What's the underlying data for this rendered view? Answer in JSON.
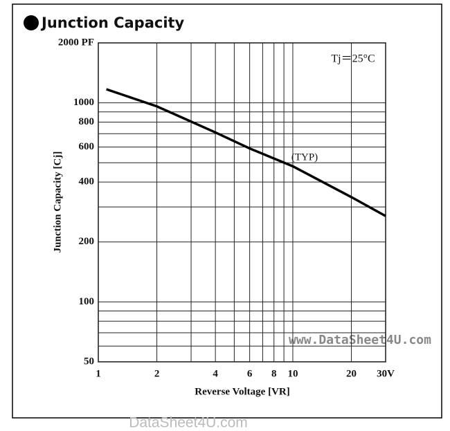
{
  "chart_data": {
    "type": "line",
    "title": "Junction Capacity",
    "annotations": [
      "Tj＝25°C",
      "(TYP)",
      "www.DataSheet4U.com",
      "DataSheet4U.com"
    ],
    "x_label": "Reverse Voltage [VR]",
    "y_label": "Junction Capacity [Cj]",
    "x_log": true,
    "y_log": true,
    "grid": true,
    "xlim": [
      1,
      30
    ],
    "ylim": [
      50,
      2000
    ],
    "xticks": [
      1,
      2,
      4,
      6,
      8,
      10,
      20,
      {
        "value": 30,
        "label": "30V"
      }
    ],
    "xgrid": [
      3,
      5,
      7,
      9
    ],
    "yticks": [
      50,
      100,
      200,
      400,
      600,
      800,
      1000,
      {
        "value": 2000,
        "label": "2000 PF"
      }
    ],
    "ygrid": [
      60,
      70,
      80,
      90,
      300,
      500,
      700,
      900
    ],
    "series": [
      {
        "name": "TYP",
        "color": "#000000",
        "x": [
          1.1,
          2,
          4,
          6,
          10,
          20,
          30
        ],
        "values": [
          1170,
          960,
          710,
          590,
          480,
          336,
          270
        ]
      }
    ]
  }
}
